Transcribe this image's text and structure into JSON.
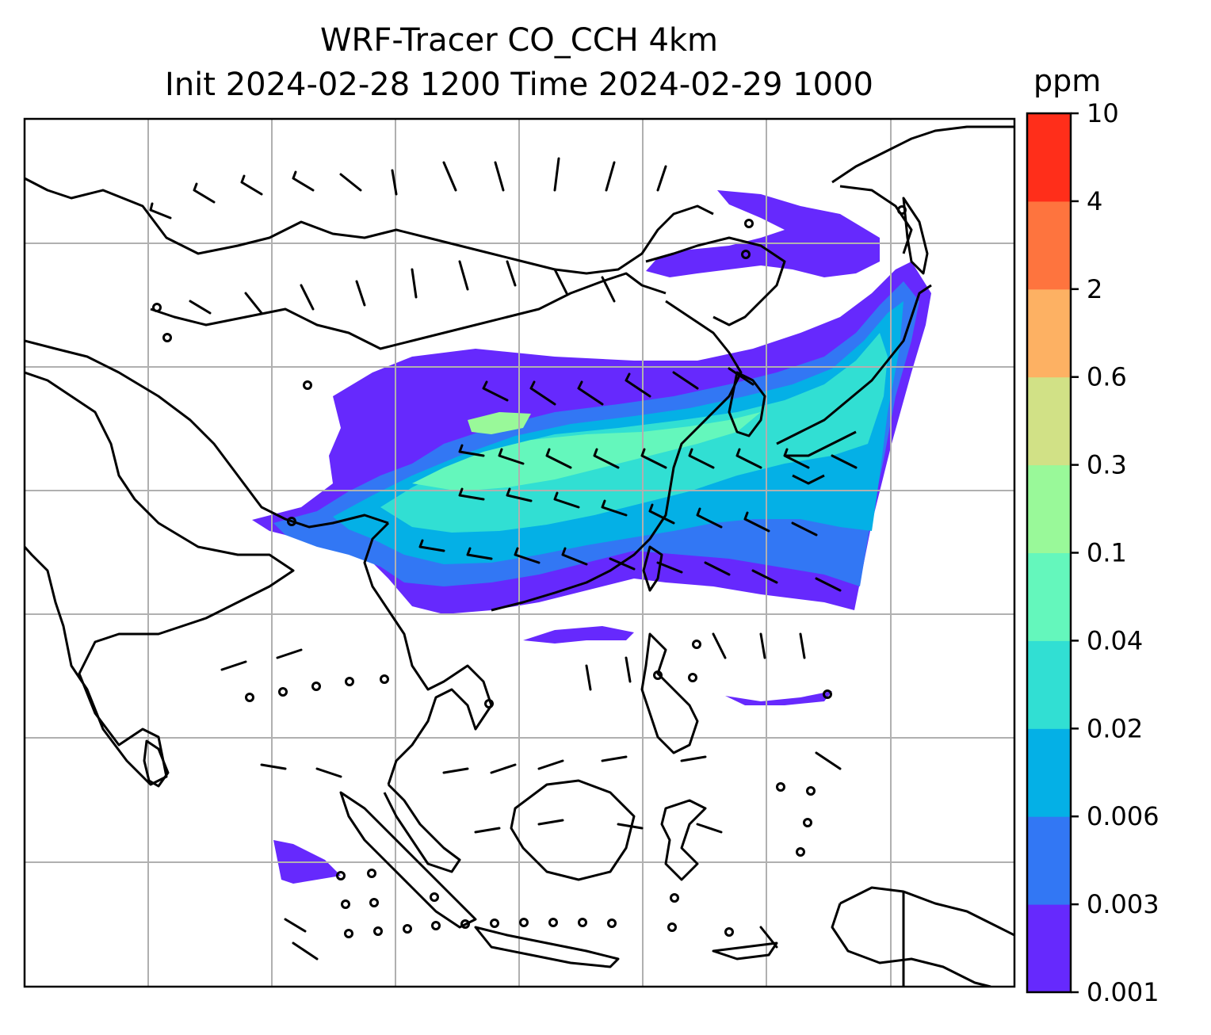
{
  "title_line1": "WRF-Tracer CO_CCH 4km",
  "title_line2": "Init 2024-02-28 1200 Time 2024-02-29 1000",
  "colorbar": {
    "units": "ppm",
    "levels": [
      "0.001",
      "0.003",
      "0.006",
      "0.02",
      "0.04",
      "0.1",
      "0.3",
      "0.6",
      "2",
      "4",
      "10"
    ],
    "colors": [
      "#6629fd",
      "#3277f4",
      "#04b0e6",
      "#31dfd3",
      "#64f7bc",
      "#99f999",
      "#d1e186",
      "#fdb163",
      "#fe743e",
      "#ff2e1a"
    ]
  },
  "map": {
    "plume_colors": [
      "#6629fd",
      "#3277f4",
      "#04b0e6",
      "#31dfd3",
      "#64f7bc",
      "#99f999"
    ],
    "coastline_color": "#000000",
    "gridline_color": "#b0b0b0"
  }
}
